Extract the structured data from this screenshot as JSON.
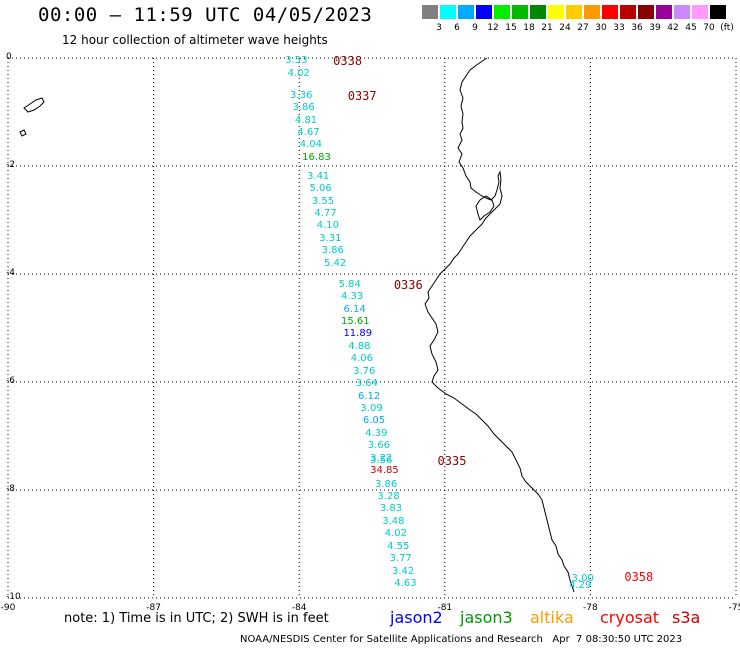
{
  "title": "00:00 — 11:59 UTC 04/05/2023",
  "subtitle": "12 hour collection of altimeter wave heights",
  "colorbar": {
    "bins": [
      {
        "color": "#808080",
        "label": "3"
      },
      {
        "color": "#00ffff",
        "label": "6"
      },
      {
        "color": "#00aaff",
        "label": "9"
      },
      {
        "color": "#0000ff",
        "label": "12"
      },
      {
        "color": "#00ee00",
        "label": "15"
      },
      {
        "color": "#00bb00",
        "label": "18"
      },
      {
        "color": "#008800",
        "label": "21"
      },
      {
        "color": "#ffff00",
        "label": "24"
      },
      {
        "color": "#ffcc00",
        "label": "27"
      },
      {
        "color": "#ff9900",
        "label": "30"
      },
      {
        "color": "#ff0000",
        "label": "33"
      },
      {
        "color": "#bb0000",
        "label": "36"
      },
      {
        "color": "#880000",
        "label": "39"
      },
      {
        "color": "#990099",
        "label": "42"
      },
      {
        "color": "#cc88ff",
        "label": "45"
      },
      {
        "color": "#ff99ff",
        "label": "70"
      },
      {
        "color": "#000000",
        "label": "(ft)"
      }
    ]
  },
  "map": {
    "lon_range": [
      -90,
      -75
    ],
    "lat_range": [
      -10,
      0
    ],
    "x_ticks": [
      "-90",
      "-87",
      "-84",
      "-81",
      "-78",
      "-75"
    ],
    "y_ticks": [
      "0",
      "-2",
      "-4",
      "-6",
      "-8",
      "-10"
    ]
  },
  "observations": [
    {
      "text": "3.53",
      "lat": -0.05,
      "lon": -84.0,
      "color": "#00cccc"
    },
    {
      "text": "4.02",
      "lat": -0.3,
      "lon": -83.95,
      "color": "#00cccc"
    },
    {
      "text": "3.36",
      "lat": -0.7,
      "lon": -83.9,
      "color": "#00cccc"
    },
    {
      "text": "3.86",
      "lat": -0.93,
      "lon": -83.85,
      "color": "#00cccc"
    },
    {
      "text": "4.81",
      "lat": -1.16,
      "lon": -83.8,
      "color": "#00cccc"
    },
    {
      "text": "4.67",
      "lat": -1.39,
      "lon": -83.75,
      "color": "#00cccc"
    },
    {
      "text": "4.04",
      "lat": -1.62,
      "lon": -83.7,
      "color": "#00cccc"
    },
    {
      "text": "16.83",
      "lat": -1.85,
      "lon": -83.65,
      "color": "#00aa00"
    },
    {
      "text": "3.41",
      "lat": -2.2,
      "lon": -83.55,
      "color": "#00cccc"
    },
    {
      "text": "5.06",
      "lat": -2.43,
      "lon": -83.5,
      "color": "#00cccc"
    },
    {
      "text": "3.55",
      "lat": -2.66,
      "lon": -83.45,
      "color": "#00cccc"
    },
    {
      "text": "4.77",
      "lat": -2.89,
      "lon": -83.4,
      "color": "#00cccc"
    },
    {
      "text": "4.10",
      "lat": -3.12,
      "lon": -83.35,
      "color": "#00cccc"
    },
    {
      "text": "3.31",
      "lat": -3.35,
      "lon": -83.3,
      "color": "#00cccc"
    },
    {
      "text": "3.86",
      "lat": -3.58,
      "lon": -83.25,
      "color": "#00cccc"
    },
    {
      "text": "5.42",
      "lat": -3.81,
      "lon": -83.2,
      "color": "#00cccc"
    },
    {
      "text": "5.84",
      "lat": -4.2,
      "lon": -82.9,
      "color": "#00cccc"
    },
    {
      "text": "4.33",
      "lat": -4.43,
      "lon": -82.85,
      "color": "#00cccc"
    },
    {
      "text": "6.14",
      "lat": -4.66,
      "lon": -82.8,
      "color": "#00aaff"
    },
    {
      "text": "15.61",
      "lat": -4.89,
      "lon": -82.85,
      "color": "#00aa00"
    },
    {
      "text": "11.89",
      "lat": -5.12,
      "lon": -82.8,
      "color": "#0000dd"
    },
    {
      "text": "4.88",
      "lat": -5.35,
      "lon": -82.7,
      "color": "#00cccc"
    },
    {
      "text": "4.06",
      "lat": -5.58,
      "lon": -82.65,
      "color": "#00cccc"
    },
    {
      "text": "3.76",
      "lat": -5.81,
      "lon": -82.6,
      "color": "#00cccc"
    },
    {
      "text": "3.64",
      "lat": -6.04,
      "lon": -82.55,
      "color": "#00cccc"
    },
    {
      "text": "6.12",
      "lat": -6.27,
      "lon": -82.5,
      "color": "#00aaff"
    },
    {
      "text": "3.09",
      "lat": -6.5,
      "lon": -82.45,
      "color": "#00cccc"
    },
    {
      "text": "6.05",
      "lat": -6.73,
      "lon": -82.4,
      "color": "#00aaff"
    },
    {
      "text": "4.39",
      "lat": -6.96,
      "lon": -82.35,
      "color": "#00cccc"
    },
    {
      "text": "3.66",
      "lat": -7.19,
      "lon": -82.3,
      "color": "#00cccc"
    },
    {
      "text": "3.22",
      "lat": -7.42,
      "lon": -82.25,
      "color": "#00cccc"
    },
    {
      "text": "3.56",
      "lat": -7.47,
      "lon": -82.25,
      "color": "#00cccc"
    },
    {
      "text": "34.85",
      "lat": -7.65,
      "lon": -82.25,
      "color": "#cc0000"
    },
    {
      "text": "3.86",
      "lat": -7.9,
      "lon": -82.15,
      "color": "#00cccc"
    },
    {
      "text": "3.28",
      "lat": -8.13,
      "lon": -82.1,
      "color": "#00cccc"
    },
    {
      "text": "3.83",
      "lat": -8.36,
      "lon": -82.05,
      "color": "#00cccc"
    },
    {
      "text": "3.48",
      "lat": -8.59,
      "lon": -82.0,
      "color": "#00cccc"
    },
    {
      "text": "4.02",
      "lat": -8.82,
      "lon": -81.95,
      "color": "#00cccc"
    },
    {
      "text": "4.55",
      "lat": -9.05,
      "lon": -81.9,
      "color": "#00cccc"
    },
    {
      "text": "3.77",
      "lat": -9.28,
      "lon": -81.85,
      "color": "#00cccc"
    },
    {
      "text": "3.42",
      "lat": -9.51,
      "lon": -81.8,
      "color": "#00cccc"
    },
    {
      "text": "4.63",
      "lat": -9.74,
      "lon": -81.75,
      "color": "#00cccc"
    },
    {
      "text": "3.00",
      "lat": -9.65,
      "lon": -78.1,
      "color": "#00cccc"
    },
    {
      "text": "4.29",
      "lat": -9.78,
      "lon": -78.15,
      "color": "#00cccc"
    }
  ],
  "passes": [
    {
      "text": "0338",
      "lat": -0.05,
      "lon": -83.3,
      "color": "#8b0000"
    },
    {
      "text": "0337",
      "lat": -0.7,
      "lon": -83.0,
      "color": "#8b0000"
    },
    {
      "text": "0336",
      "lat": -4.2,
      "lon": -82.05,
      "color": "#8b0000"
    },
    {
      "text": "0335",
      "lat": -7.47,
      "lon": -81.15,
      "color": "#8b0000"
    },
    {
      "text": "0358",
      "lat": -9.62,
      "lon": -77.3,
      "color": "#ff0000"
    }
  ],
  "note": "note: 1) Time is in UTC; 2) SWH is in feet",
  "satellites": [
    {
      "name": "jason2",
      "color": "#0000ff"
    },
    {
      "name": "jason3",
      "color": "#009900"
    },
    {
      "name": "altika",
      "color": "#ff9900"
    },
    {
      "name": "cryosat",
      "color": "#ff0000"
    },
    {
      "name": "s3a",
      "color": "#cc0000"
    }
  ],
  "footer": "NOAA/NESDIS Center for Satellite Applications and Research   Apr  7 08:30:50 UTC 2023"
}
